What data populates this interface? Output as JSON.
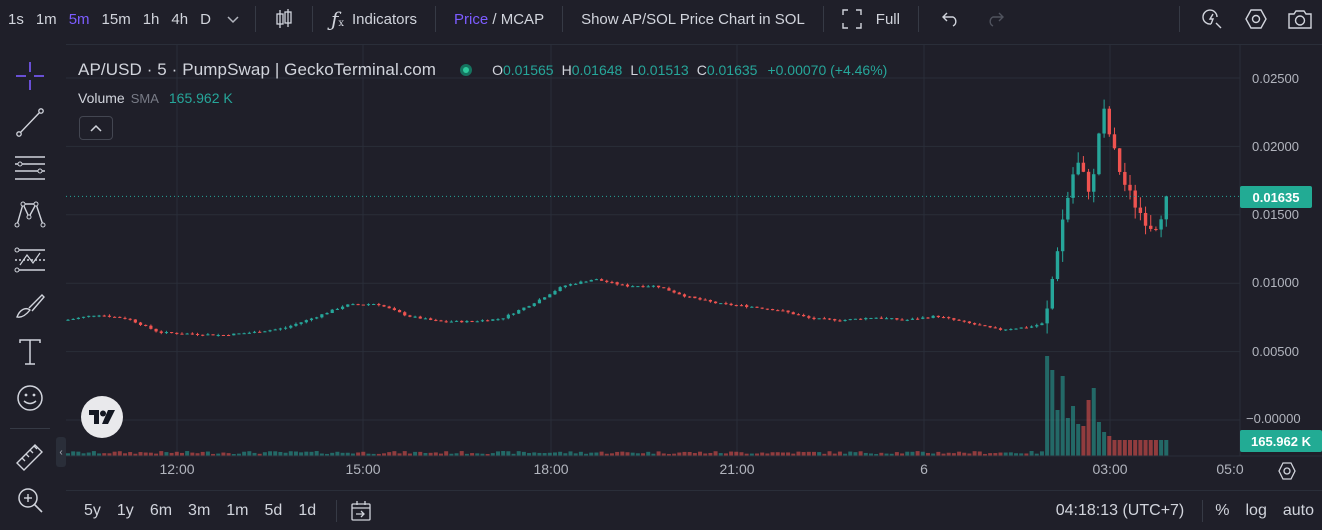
{
  "toolbar": {
    "intervals": [
      "1s",
      "1m",
      "5m",
      "15m",
      "1h",
      "4h",
      "D"
    ],
    "active_interval": "5m",
    "indicators_label": "Indicators",
    "price_label": "Price",
    "mcap_label": "MCAP",
    "price_mcap_sep": " / ",
    "show_pair_label": "Show AP/SOL Price Chart in SOL",
    "fullscreen_label": "Full",
    "icons": [
      "chevron-down-icon",
      "candlestick-icon",
      "fx-icon",
      "fullscreen-icon",
      "undo-icon",
      "redo-icon",
      "quick-search-icon",
      "settings-icon",
      "camera-icon"
    ]
  },
  "left_tools": [
    "crosshair-icon",
    "trend-line-icon",
    "fib-retracement-icon",
    "pattern-icon",
    "prediction-icon",
    "brush-icon",
    "text-icon",
    "emoji-icon",
    "ruler-icon",
    "zoom-in-icon"
  ],
  "legend": {
    "title": "AP/USD · 5 · PumpSwap | GeckoTerminal.com",
    "o_key": "O",
    "o": "0.01565",
    "h_key": "H",
    "h": "0.01648",
    "l_key": "L",
    "l": "0.01513",
    "c_key": "C",
    "c": "0.01635",
    "change": "+0.00070 (+4.46%)"
  },
  "volume_legend": {
    "label": "Volume",
    "sma": "SMA",
    "value": "165.962 K"
  },
  "price_axis": {
    "labels": [
      "0.02500",
      "0.02000",
      "0.01500",
      "0.01000",
      "0.00500",
      "−0.00000"
    ],
    "last_price": "0.01635",
    "last_volume": "165.962 K"
  },
  "time_axis": {
    "labels": [
      "12:00",
      "15:00",
      "18:00",
      "21:00",
      "6",
      "03:00",
      "05:0"
    ]
  },
  "bottom_bar": {
    "ranges": [
      "5y",
      "1y",
      "6m",
      "3m",
      "1m",
      "5d",
      "1d"
    ],
    "clock": "04:18:13 (UTC+7)",
    "percent": "%",
    "log": "log",
    "auto": "auto",
    "icons": [
      "calendar-range-icon"
    ]
  },
  "colors": {
    "up": "#26a69a",
    "down": "#ef5350",
    "accent": "#7c5cff",
    "background": "#1f1f29"
  },
  "chart_data": {
    "type": "candlestick",
    "symbol": "AP/USD",
    "interval": "5",
    "price_ticks": [
      0.025,
      0.02,
      0.015,
      0.01,
      0.005,
      0
    ],
    "time_ticks": [
      "12:00",
      "15:00",
      "18:00",
      "21:00",
      "6",
      "03:00",
      "05:0"
    ],
    "last_close": 0.01635,
    "price_path": [
      [
        "10:30",
        0.0073
      ],
      [
        "11:00",
        0.0077
      ],
      [
        "11:30",
        0.0074
      ],
      [
        "12:00",
        0.0064
      ],
      [
        "12:30",
        0.0063
      ],
      [
        "13:00",
        0.0062
      ],
      [
        "13:30",
        0.0064
      ],
      [
        "14:00",
        0.0067
      ],
      [
        "14:30",
        0.0075
      ],
      [
        "15:00",
        0.0084
      ],
      [
        "15:30",
        0.0085
      ],
      [
        "16:00",
        0.0076
      ],
      [
        "16:30",
        0.0072
      ],
      [
        "17:00",
        0.0072
      ],
      [
        "17:30",
        0.0074
      ],
      [
        "18:00",
        0.0085
      ],
      [
        "18:30",
        0.0098
      ],
      [
        "19:00",
        0.0103
      ],
      [
        "19:30",
        0.0098
      ],
      [
        "20:00",
        0.0098
      ],
      [
        "20:30",
        0.009
      ],
      [
        "21:00",
        0.0085
      ],
      [
        "21:30",
        0.0083
      ],
      [
        "22:00",
        0.008
      ],
      [
        "22:30",
        0.0074
      ],
      [
        "23:00",
        0.0073
      ],
      [
        "23:30",
        0.0075
      ],
      [
        "00:00",
        0.0073
      ],
      [
        "00:30",
        0.0076
      ],
      [
        "01:00",
        0.0071
      ],
      [
        "01:30",
        0.0066
      ],
      [
        "02:00",
        0.0068
      ],
      [
        "02:15",
        0.0071
      ],
      [
        "02:30",
        0.014
      ],
      [
        "02:45",
        0.019
      ],
      [
        "03:00",
        0.0165
      ],
      [
        "03:10",
        0.023
      ],
      [
        "03:20",
        0.02
      ],
      [
        "03:30",
        0.0175
      ],
      [
        "03:40",
        0.016
      ],
      [
        "03:50",
        0.0148
      ],
      [
        "04:00",
        0.014
      ],
      [
        "04:10",
        0.0156
      ],
      [
        "04:15",
        0.0163
      ]
    ],
    "volume_tail": [
      5,
      4.3,
      2.3,
      4,
      1.9,
      2.5,
      1.6,
      1.5,
      2.8,
      3.4,
      1.7,
      1.2,
      1.0,
      0.8
    ]
  }
}
